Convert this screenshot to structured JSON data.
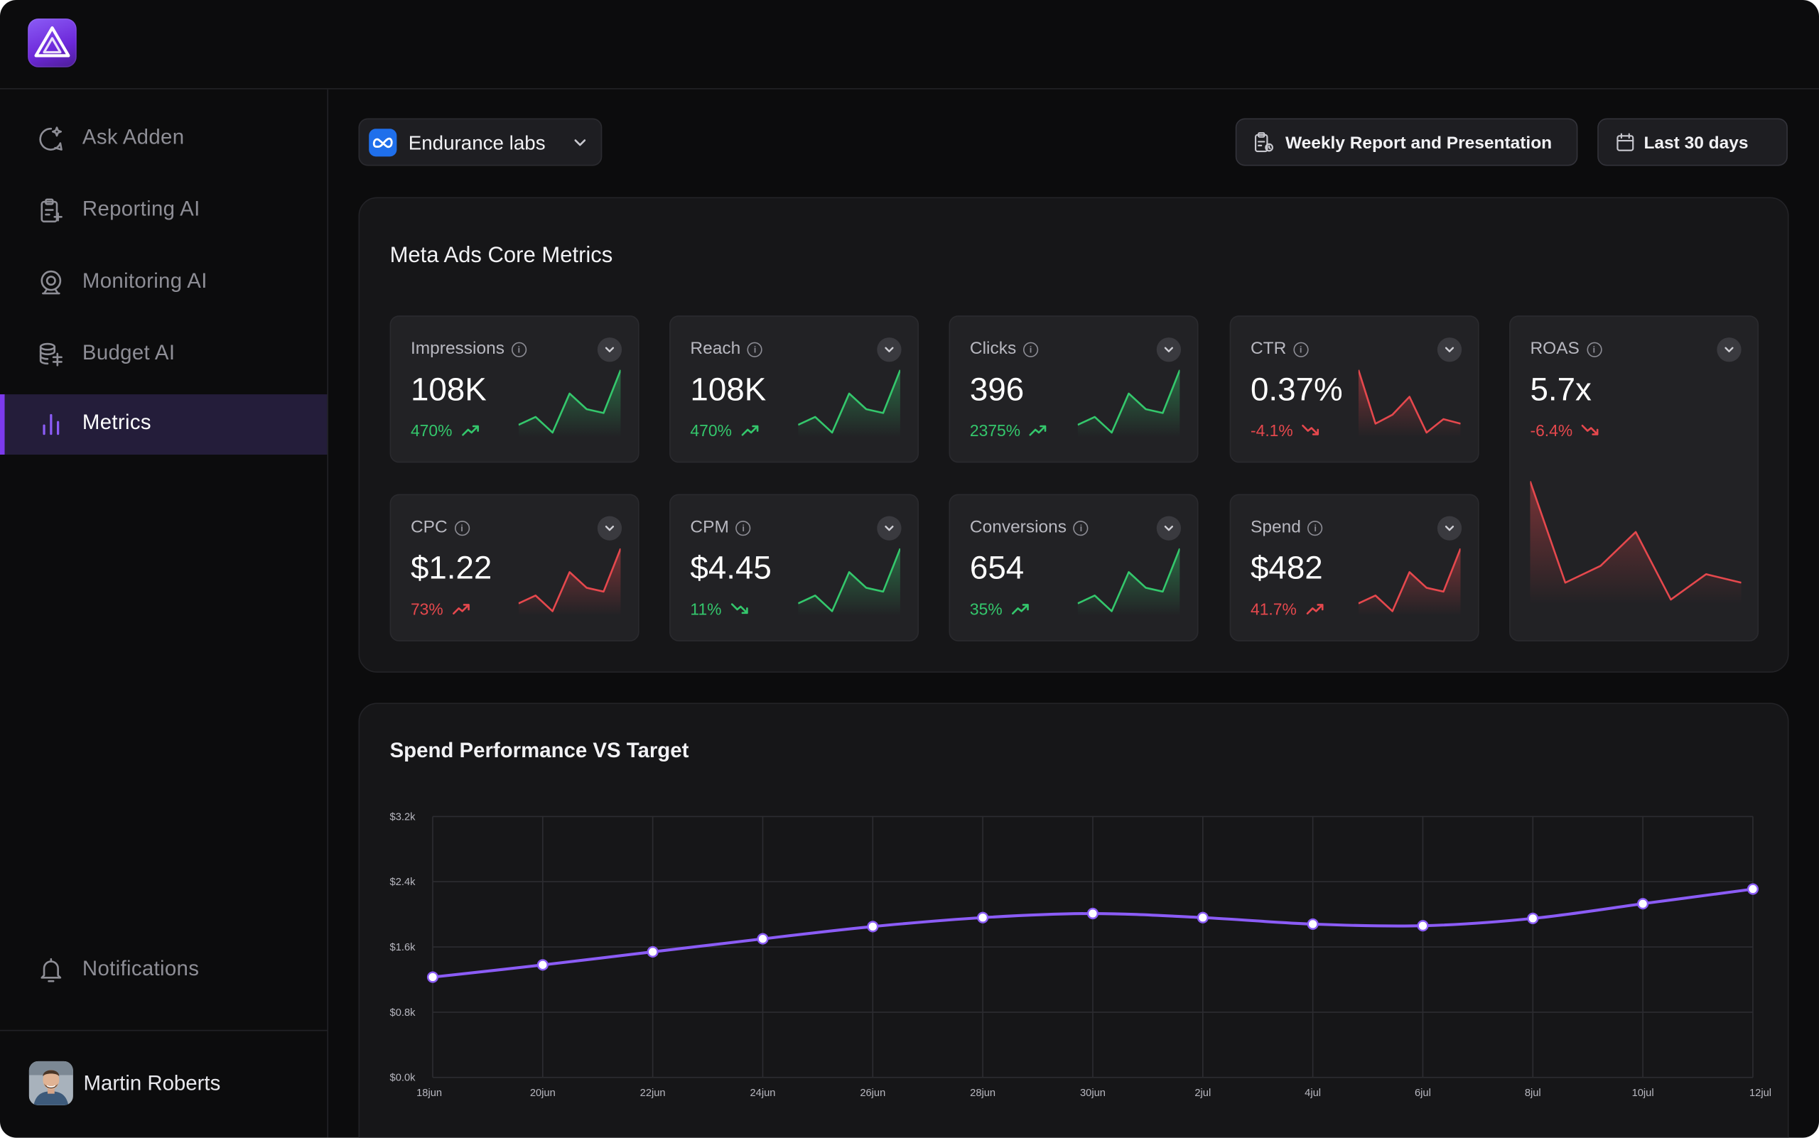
{
  "app": {
    "logo_icon": "triangle-logo-icon",
    "accent": "#7c3aed"
  },
  "sidebar": {
    "items": [
      {
        "label": "Ask Adden",
        "icon": "chat-sparkle-icon",
        "active": false
      },
      {
        "label": "Reporting AI",
        "icon": "clipboard-icon",
        "active": false
      },
      {
        "label": "Monitoring AI",
        "icon": "webcam-icon",
        "active": false
      },
      {
        "label": "Budget AI",
        "icon": "coins-icon",
        "active": false
      },
      {
        "label": "Metrics",
        "icon": "bar-chart-icon",
        "active": true
      }
    ],
    "notifications_label": "Notifications",
    "user": {
      "name": "Martin Roberts"
    }
  },
  "header": {
    "account_label": "Endurance labs",
    "report_button_label": "Weekly Report and Presentation",
    "date_range_label": "Last 30 days"
  },
  "metrics_panel": {
    "title": "Meta Ads Core Metrics",
    "cards": [
      {
        "name": "Impressions",
        "value": "108K",
        "delta": "470%",
        "trend": "up",
        "color": "#34c76c",
        "spark": [
          3,
          4,
          2,
          7,
          5,
          4.5,
          10
        ]
      },
      {
        "name": "Reach",
        "value": "108K",
        "delta": "470%",
        "trend": "up",
        "color": "#34c76c",
        "spark": [
          3,
          4,
          2,
          7,
          5,
          4.5,
          10
        ]
      },
      {
        "name": "Clicks",
        "value": "396",
        "delta": "2375%",
        "trend": "up",
        "color": "#34c76c",
        "spark": [
          3,
          4,
          2,
          7,
          5,
          4.5,
          10
        ]
      },
      {
        "name": "CTR",
        "value": "0.37%",
        "delta": "-4.1%",
        "trend": "down",
        "color": "#e5484d",
        "spark": [
          10,
          4,
          5,
          7,
          3,
          4.5,
          4
        ]
      },
      {
        "name": "CPC",
        "value": "$1.22",
        "delta": "73%",
        "trend": "up",
        "color": "#e5484d",
        "spark": [
          3,
          4,
          2,
          7,
          5,
          4.5,
          10
        ]
      },
      {
        "name": "CPM",
        "value": "$4.45",
        "delta": "11%",
        "trend": "down",
        "color": "#34c76c",
        "spark": [
          3,
          4,
          2,
          7,
          5,
          4.5,
          10
        ]
      },
      {
        "name": "Conversions",
        "value": "654",
        "delta": "35%",
        "trend": "up",
        "color": "#34c76c",
        "spark": [
          3,
          4,
          2,
          7,
          5,
          4.5,
          10
        ]
      },
      {
        "name": "Spend",
        "value": "$482",
        "delta": "41.7%",
        "trend": "up",
        "color": "#e5484d",
        "spark": [
          3,
          4,
          2,
          7,
          5,
          4.5,
          10
        ]
      }
    ],
    "roas": {
      "name": "ROAS",
      "value": "5.7x",
      "delta": "-6.4%",
      "trend": "down",
      "color": "#e5484d",
      "spark": [
        10,
        4,
        5,
        7,
        3,
        4.5,
        4
      ]
    }
  },
  "spend_panel": {
    "title": "Spend Performance VS Target"
  },
  "chart_data": {
    "type": "line",
    "title": "Spend Performance VS Target",
    "x": [
      "18jun",
      "20jun",
      "22jun",
      "24jun",
      "26jun",
      "28jun",
      "30jun",
      "2jul",
      "4jul",
      "6jul",
      "8jul",
      "10jul",
      "12jul"
    ],
    "y_ticks": [
      "$0.0k",
      "$0.8k",
      "$1.6k",
      "$2.4k",
      "$3.2k"
    ],
    "ylim": [
      0,
      3200
    ],
    "grid": true,
    "line_color": "#8b5cf6",
    "values": [
      1230,
      1380,
      1540,
      1700,
      1850,
      1960,
      2010,
      1960,
      1880,
      1860,
      1950,
      2130,
      2310
    ]
  }
}
